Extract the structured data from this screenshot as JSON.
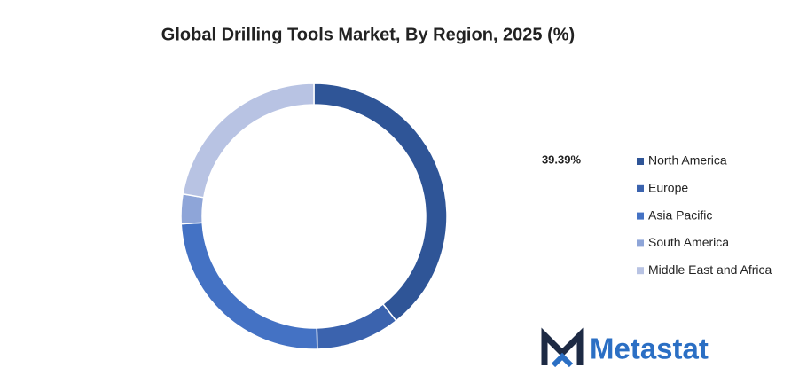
{
  "chart_data": {
    "type": "donut",
    "title": "Global Drilling Tools Market, By Region, 2025 (%)",
    "categories": [
      "North America",
      "Europe",
      "Asia Pacific",
      "South America",
      "Middle East and Africa"
    ],
    "values": [
      39.39,
      10.2,
      24.5,
      3.6,
      22.31
    ],
    "value_labels": [
      "39.39%",
      null,
      null,
      null,
      null
    ],
    "colors": [
      "#2f5597",
      "#3b63ae",
      "#4472c4",
      "#8ea5d8",
      "#b8c3e3"
    ],
    "legend": "right"
  },
  "brand": "Metastat"
}
